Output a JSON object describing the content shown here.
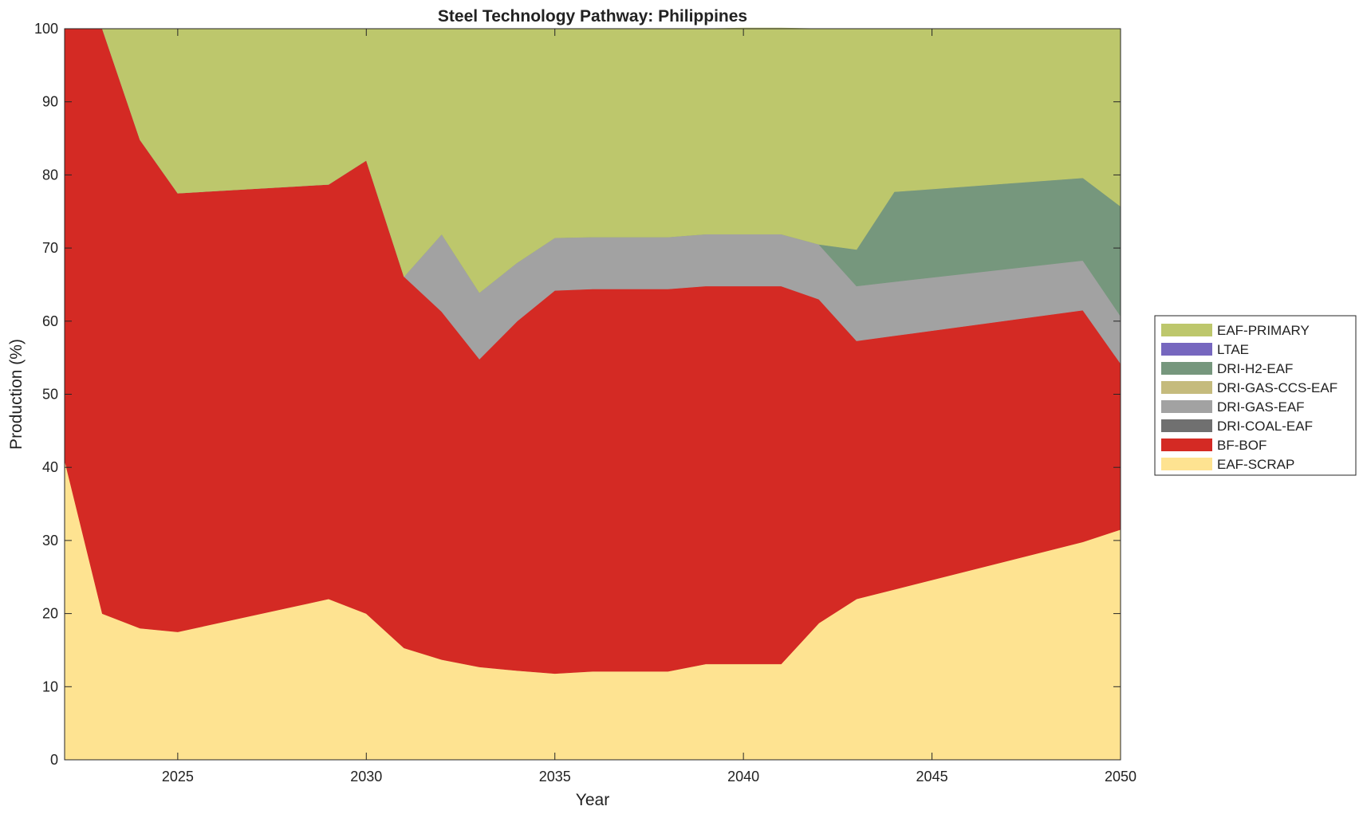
{
  "chart_data": {
    "type": "area",
    "stacked": true,
    "title": "Steel Technology Pathway: Philippines",
    "xlabel": "Year",
    "ylabel": "Production (%)",
    "xlim": [
      2022,
      2050
    ],
    "ylim": [
      0,
      100
    ],
    "x_ticks": [
      2025,
      2030,
      2035,
      2040,
      2045,
      2050
    ],
    "y_ticks": [
      0,
      10,
      20,
      30,
      40,
      50,
      60,
      70,
      80,
      90,
      100
    ],
    "grid": false,
    "legend_position": "right",
    "x": [
      2022,
      2023,
      2024,
      2025,
      2029,
      2030,
      2031,
      2032,
      2033,
      2034,
      2035,
      2036,
      2037,
      2038,
      2039,
      2040,
      2041,
      2042,
      2043,
      2044,
      2049,
      2050
    ],
    "series": [
      {
        "name": "EAF-SCRAP",
        "color": "#fee391",
        "values": [
          41,
          20,
          18,
          17.5,
          22,
          20,
          15.3,
          13.7,
          12.7,
          12.2,
          11.8,
          12.1,
          12.1,
          12.1,
          13.1,
          13.1,
          13.1,
          18.7,
          22,
          23.3,
          29.8,
          31.5
        ]
      },
      {
        "name": "BF-BOF",
        "color": "#d42a24",
        "values": [
          59,
          80,
          66.8,
          60,
          56.7,
          62,
          50.8,
          47.6,
          42.1,
          47.8,
          52.4,
          52.3,
          52.3,
          52.3,
          51.7,
          51.7,
          51.7,
          44.3,
          35.3,
          34.7,
          31.7,
          22.7
        ]
      },
      {
        "name": "DRI-COAL-EAF",
        "color": "#707070",
        "values": [
          0,
          0,
          0,
          0,
          0,
          0,
          0,
          0,
          0,
          0,
          0,
          0,
          0,
          0,
          0,
          0,
          0,
          0,
          0,
          0,
          0,
          0
        ]
      },
      {
        "name": "DRI-GAS-EAF",
        "color": "#a2a2a2",
        "values": [
          0,
          0,
          0,
          0,
          0,
          0,
          0,
          10.6,
          9.1,
          8,
          7.2,
          7.1,
          7.1,
          7.1,
          7.1,
          7.1,
          7.1,
          7.5,
          7.5,
          7.4,
          6.8,
          6.5
        ]
      },
      {
        "name": "DRI-GAS-CCS-EAF",
        "color": "#c5bb7d",
        "values": [
          0,
          0,
          0,
          0,
          0,
          0,
          0,
          0,
          0,
          0,
          0,
          0,
          0,
          0,
          0,
          0,
          0,
          0,
          0,
          0,
          0,
          0
        ]
      },
      {
        "name": "DRI-H2-EAF",
        "color": "#76977d",
        "values": [
          0,
          0,
          0,
          0,
          0,
          0,
          0,
          0,
          0,
          0,
          0,
          0,
          0,
          0,
          0,
          0,
          0,
          0,
          5,
          12.3,
          11.3,
          15
        ]
      },
      {
        "name": "LTAE",
        "color": "#7667bf",
        "values": [
          0,
          0,
          0,
          0,
          0,
          0,
          0,
          0,
          0,
          0,
          0,
          0,
          0,
          0,
          0,
          0,
          0,
          0,
          0,
          0,
          0,
          0
        ]
      },
      {
        "name": "EAF-PRIMARY",
        "color": "#bdc76c",
        "values": [
          0,
          0,
          15.2,
          22.5,
          21.3,
          18,
          33.9,
          28.1,
          36.1,
          32,
          28.6,
          28.5,
          28.5,
          28.5,
          28.1,
          28.2,
          28.2,
          29.5,
          30.2,
          22.3,
          20.4,
          24.3
        ]
      }
    ],
    "legend_order": [
      "EAF-PRIMARY",
      "LTAE",
      "DRI-H2-EAF",
      "DRI-GAS-CCS-EAF",
      "DRI-GAS-EAF",
      "DRI-COAL-EAF",
      "BF-BOF",
      "EAF-SCRAP"
    ]
  }
}
